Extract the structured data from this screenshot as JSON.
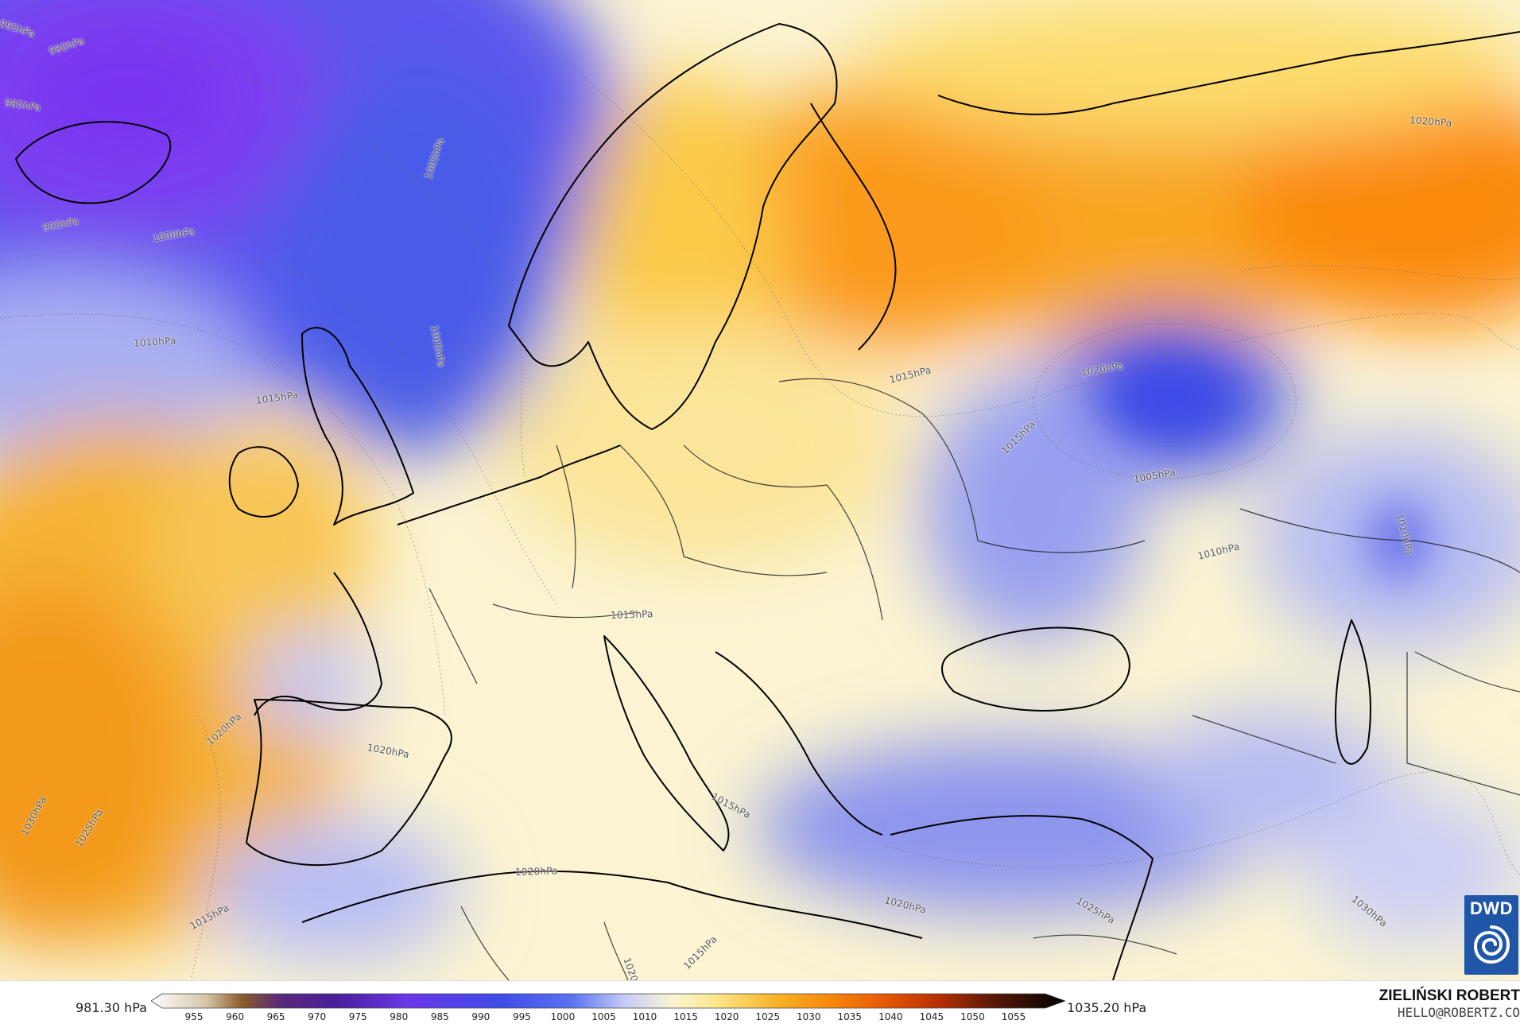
{
  "map": {
    "isobar_labels": [
      {
        "text": "995hPa"
      },
      {
        "text": "990hPa"
      },
      {
        "text": "985hPa"
      },
      {
        "text": "995hPa"
      },
      {
        "text": "1000hPa"
      },
      {
        "text": "1005hPa"
      },
      {
        "text": "1005hPa"
      },
      {
        "text": "1010hPa"
      },
      {
        "text": "1015hPa"
      },
      {
        "text": "1020hPa"
      },
      {
        "text": "1030hPa"
      },
      {
        "text": "1025hPa"
      },
      {
        "text": "1020hPa"
      },
      {
        "text": "1015hPa"
      },
      {
        "text": "1005hPa"
      },
      {
        "text": "1010hPa"
      },
      {
        "text": "1010hPa"
      },
      {
        "text": "1015hPa"
      },
      {
        "text": "1020hPa"
      },
      {
        "text": "1020hPa"
      },
      {
        "text": "1015hPa"
      },
      {
        "text": "1030hPa"
      },
      {
        "text": "1025hPa"
      },
      {
        "text": "1015hPa"
      },
      {
        "text": "1020hPa"
      },
      {
        "text": "1015hPa"
      },
      {
        "text": "1020hPa"
      },
      {
        "text": "1020hPa"
      },
      {
        "text": "1015hPa"
      }
    ],
    "colors": {
      "low_deep": "#7b3ff0",
      "low": "#3f4be8",
      "low_light": "#9aa3f2",
      "neutral": "#fbf4d2",
      "high_light": "#fde58a",
      "high": "#f7b52a",
      "high_deep": "#fb8a0c",
      "coast": "#000000"
    }
  },
  "legend": {
    "min_value": "981.30 hPa",
    "max_value": "1035.20 hPa",
    "ticks": [
      "955",
      "960",
      "965",
      "970",
      "975",
      "980",
      "985",
      "990",
      "995",
      "1000",
      "1005",
      "1010",
      "1015",
      "1020",
      "1025",
      "1030",
      "1035",
      "1040",
      "1045",
      "1050",
      "1055"
    ]
  },
  "logo": {
    "text": "DWD"
  },
  "author": {
    "name": "ZIELIŃSKI ROBERT",
    "email": "HELLO@ROBERTZ.CO"
  }
}
